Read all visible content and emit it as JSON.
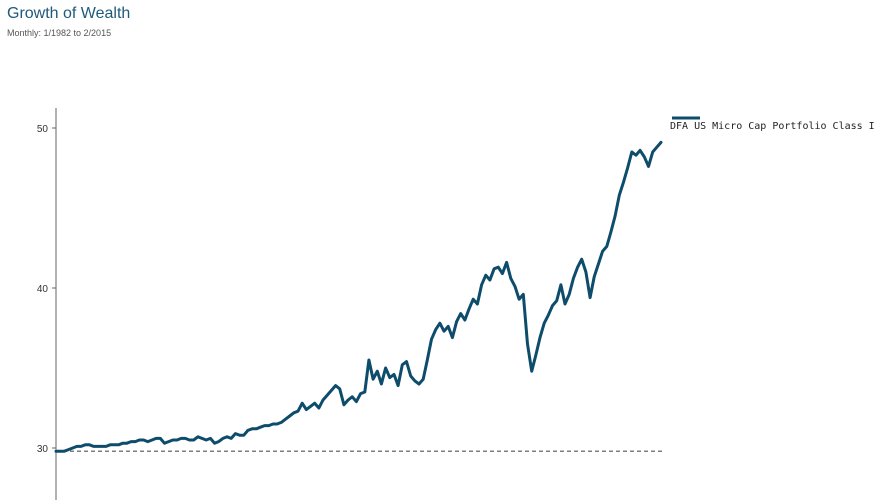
{
  "chart_data": {
    "type": "line",
    "title": "Growth of Wealth",
    "subtitle": "Monthly: 1/1982 to 2/2015",
    "xlabel": "",
    "ylabel": "",
    "x_range": [
      "1/1982",
      "2/2015"
    ],
    "ylim": [
      27,
      51.5
    ],
    "y_ticks": [
      30,
      40,
      50
    ],
    "y_tick_labels": [
      "30",
      "40",
      "50"
    ],
    "grid": false,
    "legend": "top-right",
    "baseline": 29.8,
    "series": [
      {
        "name": "DFA US Micro Cap Portfolio Class I",
        "color": "#0e4c6b",
        "values": [
          29.8,
          29.8,
          29.8,
          29.9,
          30.0,
          30.1,
          30.1,
          30.2,
          30.2,
          30.1,
          30.1,
          30.1,
          30.1,
          30.2,
          30.2,
          30.2,
          30.3,
          30.3,
          30.4,
          30.4,
          30.5,
          30.5,
          30.4,
          30.5,
          30.6,
          30.6,
          30.3,
          30.4,
          30.5,
          30.5,
          30.6,
          30.6,
          30.5,
          30.5,
          30.7,
          30.6,
          30.5,
          30.6,
          30.3,
          30.4,
          30.6,
          30.7,
          30.6,
          30.9,
          30.8,
          30.8,
          31.1,
          31.2,
          31.2,
          31.3,
          31.4,
          31.4,
          31.5,
          31.5,
          31.6,
          31.8,
          32.0,
          32.2,
          32.3,
          32.8,
          32.4,
          32.6,
          32.8,
          32.5,
          33.0,
          33.3,
          33.6,
          33.9,
          33.7,
          32.7,
          33.0,
          33.2,
          32.9,
          33.4,
          33.5,
          35.5,
          34.3,
          34.8,
          34.0,
          35.0,
          34.4,
          34.6,
          33.9,
          35.2,
          35.4,
          34.5,
          34.2,
          34.0,
          34.3,
          35.5,
          36.8,
          37.4,
          37.8,
          37.3,
          37.6,
          36.9,
          37.9,
          38.4,
          38.0,
          38.7,
          39.3,
          39.0,
          40.2,
          40.8,
          40.5,
          41.2,
          41.3,
          40.9,
          41.6,
          40.6,
          40.1,
          39.3,
          39.6,
          36.5,
          34.8,
          35.8,
          36.9,
          37.8,
          38.3,
          38.9,
          39.2,
          40.2,
          39.0,
          39.6,
          40.6,
          41.3,
          41.8,
          41.0,
          39.4,
          40.7,
          41.5,
          42.3,
          42.6,
          43.5,
          44.5,
          45.8,
          46.6,
          47.5,
          48.5,
          48.3,
          48.6,
          48.2,
          47.6,
          48.5,
          48.8,
          49.1
        ]
      }
    ]
  }
}
